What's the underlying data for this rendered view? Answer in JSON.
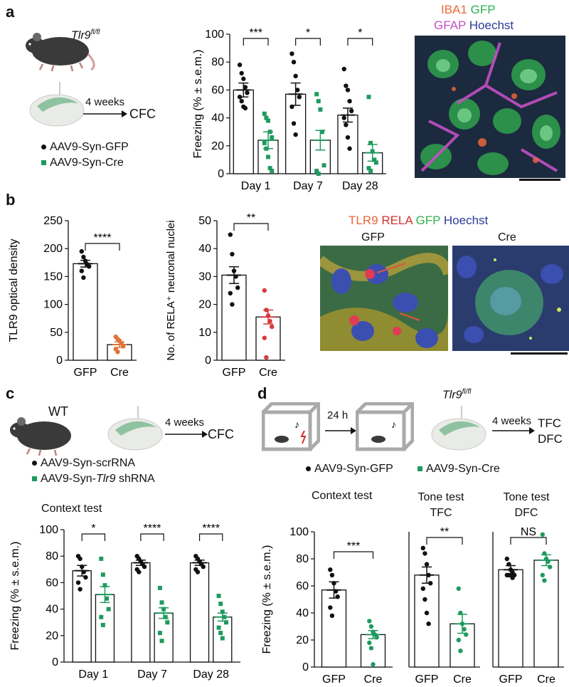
{
  "panels": {
    "a": {
      "label": "a",
      "genotype": "Tlr9",
      "genotype_sup": "fl/fl",
      "arrow_label": "4 weeks",
      "arrow_target": "CFC",
      "legend": [
        {
          "marker": "circle",
          "color": "#111111",
          "text": "AAV9-Syn-GFP"
        },
        {
          "marker": "square",
          "color": "#1f9a5e",
          "text": "AAV9-Syn-Cre"
        }
      ],
      "micrograph_legend": [
        {
          "text": "IBA1",
          "color": "#e8673a"
        },
        {
          "text": "GFP",
          "color": "#2fb34e"
        },
        {
          "text": "GFAP",
          "color": "#c34fc3"
        },
        {
          "text": "Hoechst",
          "color": "#2d3b9a"
        }
      ]
    },
    "b": {
      "label": "b",
      "micrograph_legend": [
        {
          "text": "TLR9",
          "color": "#e8673a"
        },
        {
          "text": "RELA",
          "color": "#d32f2f"
        },
        {
          "text": "GFP",
          "color": "#2fb34e"
        },
        {
          "text": "Hoechst",
          "color": "#2d3b9a"
        }
      ],
      "micrograph_titles": [
        "GFP",
        "Cre"
      ]
    },
    "c": {
      "label": "c",
      "genotype": "WT",
      "arrow_label": "4 weeks",
      "arrow_target": "CFC",
      "legend": [
        {
          "marker": "circle",
          "color": "#111111",
          "text": "AAV9-Syn-scrRNA"
        },
        {
          "marker": "square",
          "color": "#1f9a5e",
          "text_pre": "AAV9-Syn-",
          "text_it": "Tlr9",
          "text_post": " shRNA"
        }
      ]
    },
    "d": {
      "label": "d",
      "interval": "24 h",
      "genotype": "Tlr9",
      "genotype_sup": "fl/fl",
      "arrow_label": "4 weeks",
      "arrow_targets": [
        "TFC",
        "DFC"
      ],
      "legend": [
        {
          "marker": "circle",
          "color": "#111111",
          "text": "AAV9-Syn-GFP"
        },
        {
          "marker": "square",
          "color": "#1f9a5e",
          "text": "AAV9-Syn-Cre"
        }
      ]
    }
  },
  "chart_data": [
    {
      "id": "a_freezing",
      "panel": "a",
      "type": "bar",
      "ylabel": "Freezing (% ± s.e.m.)",
      "ylim": [
        0,
        100
      ],
      "yticks": [
        0,
        20,
        40,
        60,
        80,
        100
      ],
      "categories": [
        "Day 1",
        "Day 7",
        "Day 28"
      ],
      "series": [
        {
          "name": "AAV9-Syn-GFP",
          "color": "#111111",
          "marker": "circle",
          "values": [
            60,
            57,
            42
          ],
          "sem": [
            5,
            8,
            5
          ],
          "points": [
            [
              78,
              72,
              68,
              62,
              58,
              55,
              52,
              48,
              47
            ],
            [
              86,
              80,
              70,
              60,
              55,
              48,
              36,
              28
            ],
            [
              75,
              63,
              60,
              52,
              45,
              40,
              35,
              26,
              18
            ]
          ]
        },
        {
          "name": "AAV9-Syn-Cre",
          "color": "#1f9a5e",
          "marker": "square",
          "values": [
            24,
            24,
            15
          ],
          "sem": [
            6,
            7,
            6
          ],
          "points": [
            [
              43,
              40,
              38,
              30,
              26,
              22,
              18,
              12,
              4,
              2
            ],
            [
              57,
              52,
              46,
              30,
              6,
              2,
              0
            ],
            [
              55,
              22,
              16,
              10,
              8,
              4,
              2
            ]
          ]
        }
      ],
      "significance": [
        "***",
        "*",
        "*"
      ]
    },
    {
      "id": "b_tlr9_od",
      "panel": "b",
      "type": "bar",
      "ylabel": "TLR9 optical density",
      "ylim": [
        0,
        250
      ],
      "yticks": [
        0,
        50,
        100,
        150,
        200,
        250
      ],
      "categories": [
        "GFP",
        "Cre"
      ],
      "values": [
        173,
        28
      ],
      "sem": [
        6,
        5
      ],
      "colors": [
        "#111111",
        "#e0743a"
      ],
      "points": [
        [
          195,
          185,
          178,
          172,
          168,
          160,
          148
        ],
        [
          42,
          38,
          35,
          30,
          25,
          20,
          15
        ]
      ],
      "significance": "****"
    },
    {
      "id": "b_rela_nuclei",
      "panel": "b",
      "type": "bar",
      "ylabel": "No. of RELA⁺ neuronal nuclei",
      "ylim": [
        0,
        50
      ],
      "yticks": [
        0,
        10,
        20,
        30,
        40,
        50
      ],
      "categories": [
        "GFP",
        "Cre"
      ],
      "values": [
        30.5,
        15.5
      ],
      "sem": [
        3,
        2.5
      ],
      "colors": [
        "#111111",
        "#d63a3a"
      ],
      "points": [
        [
          45,
          38,
          32,
          30,
          26,
          24,
          20
        ],
        [
          25,
          18,
          16,
          14,
          12,
          8,
          1
        ]
      ],
      "significance": "**"
    },
    {
      "id": "c_context",
      "panel": "c",
      "type": "bar",
      "title": "Context test",
      "ylabel": "Freezing (% ± s.e.m.)",
      "ylim": [
        0,
        100
      ],
      "yticks": [
        0,
        20,
        40,
        60,
        80,
        100
      ],
      "categories": [
        "Day 1",
        "Day 7",
        "Day 28"
      ],
      "series": [
        {
          "name": "AAV9-Syn-scrRNA",
          "color": "#111111",
          "marker": "circle",
          "values": [
            69,
            75,
            75
          ],
          "sem": [
            4,
            2,
            2
          ],
          "points": [
            [
              80,
              78,
              72,
              68,
              64,
              60,
              55
            ],
            [
              80,
              78,
              76,
              74,
              72,
              70,
              68
            ],
            [
              80,
              78,
              76,
              74,
              72,
              70,
              68
            ]
          ]
        },
        {
          "name": "AAV9-Syn-Tlr9 shRNA",
          "color": "#1f9a5e",
          "marker": "square",
          "values": [
            51,
            37,
            34
          ],
          "sem": [
            6,
            4,
            3
          ],
          "points": [
            [
              78,
              66,
              58,
              48,
              40,
              34,
              28
            ],
            [
              56,
              45,
              40,
              34,
              30,
              22,
              16
            ],
            [
              50,
              44,
              38,
              34,
              30,
              26,
              22,
              18
            ]
          ]
        }
      ],
      "significance": [
        "*",
        "****",
        "****"
      ]
    },
    {
      "id": "d_context",
      "panel": "d",
      "type": "bar",
      "title": "Context test",
      "ylabel": "Freezing (% ± s.e.m.)",
      "ylim": [
        0,
        100
      ],
      "yticks": [
        0,
        20,
        40,
        60,
        80,
        100
      ],
      "categories": [
        "GFP",
        "Cre"
      ],
      "values": [
        57,
        24
      ],
      "sem": [
        6,
        3
      ],
      "colors": [
        "#111111",
        "#1f9a5e"
      ],
      "points": [
        [
          72,
          68,
          62,
          56,
          52,
          44,
          38
        ],
        [
          34,
          30,
          26,
          24,
          22,
          18,
          14,
          2
        ]
      ],
      "significance": "***"
    },
    {
      "id": "d_tone_tfc",
      "panel": "d",
      "type": "bar",
      "title": "Tone test TFC",
      "ylim": [
        0,
        100
      ],
      "categories": [
        "GFP",
        "Cre"
      ],
      "values": [
        68,
        32
      ],
      "sem": [
        6,
        7
      ],
      "colors": [
        "#111111",
        "#1f9a5e"
      ],
      "points": [
        [
          88,
          84,
          76,
          68,
          62,
          58,
          50,
          40,
          32
        ],
        [
          58,
          40,
          32,
          28,
          24,
          20,
          12
        ]
      ],
      "significance": "**"
    },
    {
      "id": "d_tone_dfc",
      "panel": "d",
      "type": "bar",
      "title": "Tone test DFC",
      "ylim": [
        0,
        100
      ],
      "categories": [
        "GFP",
        "Cre"
      ],
      "values": [
        72,
        79
      ],
      "sem": [
        3,
        4
      ],
      "colors": [
        "#111111",
        "#1f9a5e"
      ],
      "points": [
        [
          80,
          76,
          72,
          70,
          68,
          68,
          68,
          68,
          66
        ],
        [
          98,
          84,
          80,
          78,
          74,
          68,
          64
        ]
      ],
      "significance": "NS"
    }
  ]
}
